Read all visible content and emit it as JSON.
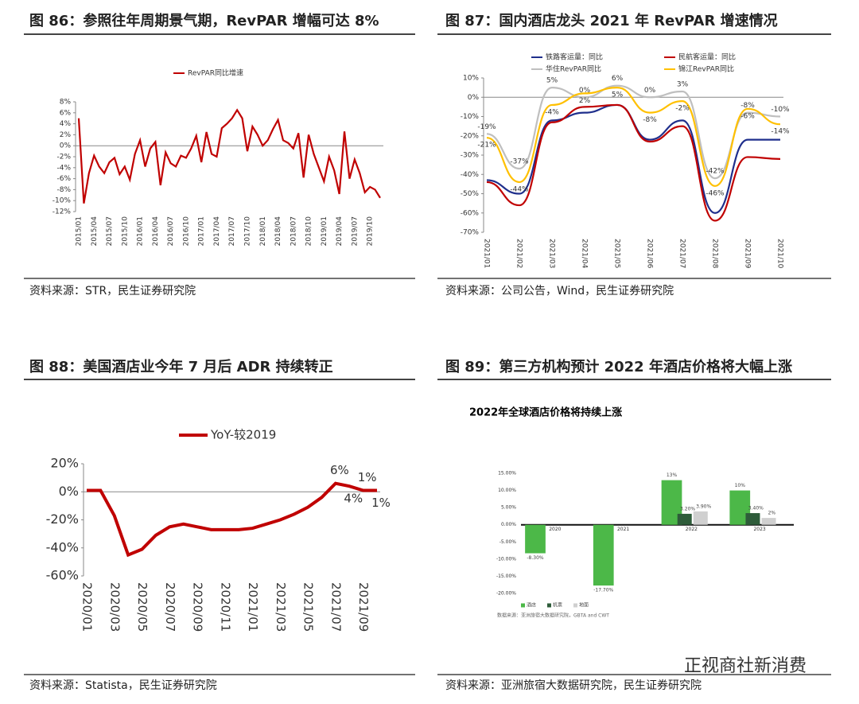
{
  "chart_data": [
    {
      "type": "line",
      "title": "图 86：参照往年周期景气期，RevPAR 增幅可达 8%",
      "source": "资料来源：STR，民生证券研究院",
      "categories": [
        "2015/01",
        null,
        null,
        "2015/04",
        null,
        null,
        "2015/07",
        null,
        null,
        "2015/10",
        null,
        null,
        "2016/01",
        null,
        null,
        "2016/04",
        null,
        null,
        "2016/07",
        null,
        null,
        "2016/10",
        null,
        null,
        "2017/01",
        null,
        null,
        "2017/04",
        null,
        null,
        "2017/07",
        null,
        null,
        "2017/10",
        null,
        null,
        "2018/01",
        null,
        null,
        "2018/04",
        null,
        null,
        "2018/07",
        null,
        null,
        "2018/10",
        null,
        null,
        "2019/01",
        null,
        null,
        "2019/04",
        null,
        null,
        "2019/07",
        null,
        null,
        "2019/10",
        null,
        null
      ],
      "series": [
        {
          "name": "RevPAR同比增速",
          "color": "#c00000",
          "values": [
            5,
            -10.5,
            -5,
            -1.8,
            -3.8,
            -5,
            -3,
            -2.2,
            -5.2,
            -3.8,
            -6.2,
            -1.5,
            1,
            -3.8,
            -0.5,
            0.7,
            -7.2,
            -1.2,
            -3.2,
            -3.8,
            -1.8,
            -2.2,
            -0.5,
            1.8,
            -3,
            2.5,
            -1.5,
            -2,
            3.2,
            4,
            5,
            6.5,
            5,
            -1,
            3.5,
            2,
            0,
            1,
            3,
            4.7,
            1,
            0.5,
            -0.5,
            2.3,
            -5.8,
            2,
            -1.5,
            -4,
            -6.5,
            -2,
            -4.5,
            -8.8,
            2.6,
            -6,
            -2.5,
            -5,
            -8.5,
            -7.5,
            -8,
            -9.5
          ]
        }
      ],
      "ylim": [
        -12,
        8
      ],
      "yticks": [
        {
          "value": -12,
          "label": "-12%"
        },
        {
          "value": -10,
          "label": "-10%"
        },
        {
          "value": -8,
          "label": "-8%"
        },
        {
          "value": -6,
          "label": "-6%"
        },
        {
          "value": -4,
          "label": "-4%"
        },
        {
          "value": -2,
          "label": "-2%"
        },
        {
          "value": 0,
          "label": "0%"
        },
        {
          "value": 2,
          "label": "2%"
        },
        {
          "value": 4,
          "label": "4%"
        },
        {
          "value": 6,
          "label": "6%"
        },
        {
          "value": 8,
          "label": "8%"
        }
      ]
    },
    {
      "type": "line",
      "title": "图 87：国内酒店龙头 2021 年 RevPAR 增速情况",
      "source": "资料来源：公司公告，Wind，民生证券研究院",
      "categories": [
        "2021/01",
        "2021/02",
        "2021/03",
        "2021/04",
        "2021/05",
        "2021/06",
        "2021/07",
        "2021/08",
        "2021/09",
        "2021/10"
      ],
      "series": [
        {
          "name": "铁路客运量：同比",
          "color": "#1f2f8c",
          "values": [
            -43,
            -50,
            -12,
            -8,
            -4,
            -22,
            -12,
            -60,
            -22,
            -22
          ]
        },
        {
          "name": "民航客运量：同比",
          "color": "#c00000",
          "values": [
            -44,
            -56,
            -13,
            -5,
            -4,
            -23,
            -15,
            -64,
            -31,
            -32
          ]
        },
        {
          "name": "华住RevPAR同比",
          "color": "#bfbfbf",
          "values": [
            -19,
            -37,
            5,
            0,
            6,
            0,
            3,
            -42,
            -8,
            -10
          ],
          "value_labels": [
            "-19%",
            "-37%",
            "5%",
            "0%",
            "6%",
            "0%",
            "3%",
            "-42%",
            "-8%",
            "-10%"
          ]
        },
        {
          "name": "锦江RevPAR同比",
          "color": "#ffc000",
          "values": [
            -21,
            -44,
            -4,
            2,
            5,
            -8,
            -2,
            -46,
            -6,
            -14
          ],
          "value_labels": [
            "-21%",
            "-44%",
            "-4%",
            "2%",
            "5%",
            "-8%",
            "-2%",
            "-46%",
            "-6%",
            "-14%"
          ]
        }
      ],
      "ylim": [
        -70,
        10
      ],
      "yticks": [
        {
          "value": -70,
          "label": "-70%"
        },
        {
          "value": -60,
          "label": "-60%"
        },
        {
          "value": -50,
          "label": "-50%"
        },
        {
          "value": -40,
          "label": "-40%"
        },
        {
          "value": -30,
          "label": "-30%"
        },
        {
          "value": -20,
          "label": "-20%"
        },
        {
          "value": -10,
          "label": "-10%"
        },
        {
          "value": 0,
          "label": "0%"
        },
        {
          "value": 10,
          "label": "10%"
        }
      ]
    },
    {
      "type": "line",
      "title": "图 88：美国酒店业今年 7 月后 ADR 持续转正",
      "source": "资料来源：Statista，民生证券研究院",
      "categories": [
        "2020/01",
        null,
        "2020/03",
        null,
        "2020/05",
        null,
        "2020/07",
        null,
        "2020/09",
        null,
        "2020/11",
        null,
        "2021/01",
        null,
        "2021/03",
        null,
        "2021/05",
        null,
        "2021/07",
        null,
        "2021/09",
        null
      ],
      "series": [
        {
          "name": "YoY-较2019",
          "color": "#c00000",
          "values": [
            1,
            1,
            -17,
            -45,
            -41,
            -31,
            -25,
            -23,
            -25,
            -27,
            -27,
            -27,
            -26,
            -23,
            -20,
            -16,
            -11,
            -4,
            6,
            4,
            1,
            1
          ],
          "value_labels": [
            null,
            null,
            null,
            null,
            null,
            null,
            null,
            null,
            null,
            null,
            null,
            null,
            null,
            null,
            null,
            null,
            null,
            null,
            "6%",
            "4%",
            "1%",
            "1%"
          ]
        }
      ],
      "ylim": [
        -60,
        20
      ],
      "yticks": [
        {
          "value": -60,
          "label": "-60%"
        },
        {
          "value": -40,
          "label": "-40%"
        },
        {
          "value": -20,
          "label": "-20%"
        },
        {
          "value": 0,
          "label": "0%"
        },
        {
          "value": 20,
          "label": "20%"
        }
      ]
    },
    {
      "type": "bar",
      "title": "图 89：第三方机构预计 2022 年酒店价格将大幅上涨",
      "source": "资料来源：亚洲旅宿大数据研究院，民生证券研究院",
      "subtitle": "2022年全球酒店价格将持续上涨",
      "note": "数据来源：亚洲旅宿大数据研究院，GBTA and CWT",
      "categories": [
        "2020",
        "2021",
        "2022",
        "2023"
      ],
      "series": [
        {
          "name": "酒店",
          "color": "#4cb848",
          "values": [
            -8.3,
            -17.7,
            13,
            10
          ],
          "value_labels": [
            "-8.30%",
            "-17.70%",
            "13%",
            "10%"
          ]
        },
        {
          "name": "机票",
          "color": "#2e5c3a",
          "values": [
            null,
            null,
            3.2,
            3.4
          ],
          "value_labels": [
            null,
            null,
            "3.20%",
            "3.40%"
          ]
        },
        {
          "name": "地面",
          "color": "#d0d0d0",
          "values": [
            null,
            null,
            3.9,
            2
          ],
          "value_labels": [
            null,
            null,
            "3.90%",
            "2%"
          ]
        }
      ],
      "ylim": [
        -20,
        15
      ],
      "yticks": [
        {
          "value": -20,
          "label": "-20.00%"
        },
        {
          "value": -15,
          "label": "-15.00%"
        },
        {
          "value": -10,
          "label": "-10.00%"
        },
        {
          "value": -5,
          "label": "-5.00%"
        },
        {
          "value": 0,
          "label": "0.00%"
        },
        {
          "value": 5,
          "label": "5.00%"
        },
        {
          "value": 10,
          "label": "10.00%"
        },
        {
          "value": 15,
          "label": "15.00%"
        }
      ]
    }
  ],
  "watermark": "正视商社新消费"
}
